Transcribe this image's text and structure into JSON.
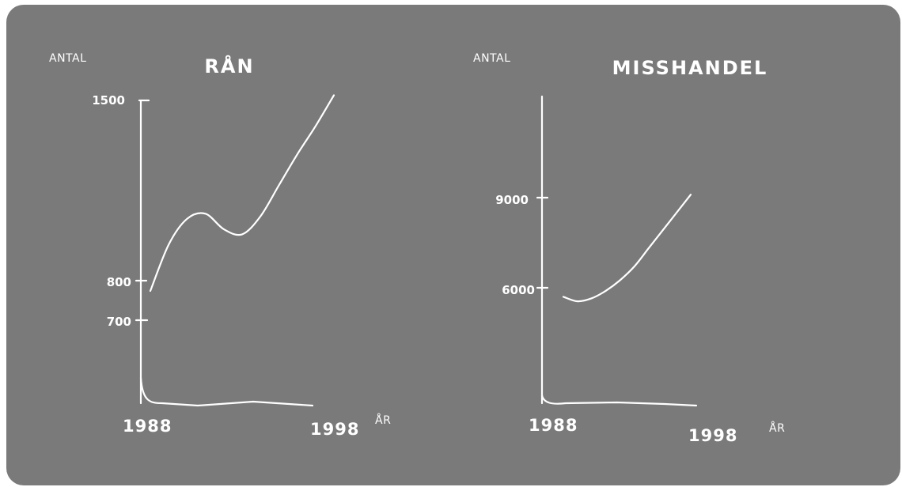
{
  "panel_color": "#7a7a7a",
  "ink_color": "#ffffff",
  "chart_data": [
    {
      "type": "line",
      "title": "RÅN",
      "ylabel": "ANTAL",
      "xlabel": "ÅR",
      "x_tick_labels": [
        "1988",
        "1998"
      ],
      "y_tick_labels": [
        "1500",
        "800",
        "700"
      ],
      "ylim": [
        0,
        1500
      ],
      "grid": false,
      "series": [
        {
          "x": [
            1988,
            1989,
            1990,
            1991,
            1992,
            1993,
            1994,
            1995,
            1996,
            1997,
            1998
          ],
          "values": [
            760,
            940,
            1040,
            1060,
            1000,
            980,
            1050,
            1170,
            1290,
            1400,
            1520
          ]
        }
      ]
    },
    {
      "type": "line",
      "title": "MISSHANDEL",
      "ylabel": "ANTAL",
      "xlabel": "ÅR",
      "x_tick_labels": [
        "1988",
        "1998"
      ],
      "y_tick_labels": [
        "9000",
        "6000"
      ],
      "ylim": [
        0,
        12000
      ],
      "grid": false,
      "series": [
        {
          "x": [
            1988,
            1989,
            1990,
            1991,
            1992,
            1993,
            1994,
            1995,
            1996,
            1997
          ],
          "values": [
            5700,
            5550,
            5650,
            5900,
            6250,
            6700,
            7300,
            7900,
            8500,
            9100
          ]
        }
      ]
    }
  ]
}
